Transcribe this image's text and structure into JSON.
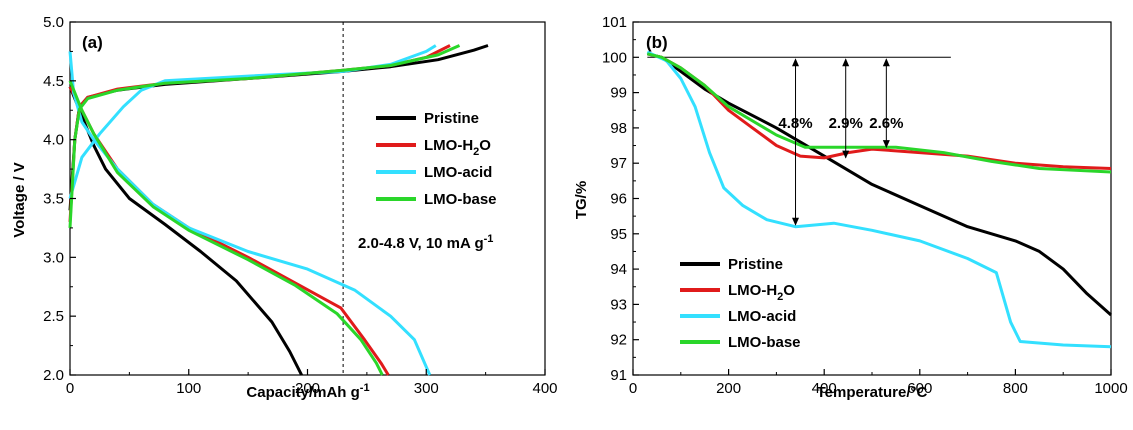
{
  "chart_data": [
    {
      "panel": "(a)",
      "type": "line",
      "xlabel": "Capacity/mAh g",
      "xlabel_sup": "-1",
      "ylabel": "Voltage / V",
      "xlim": [
        0,
        400
      ],
      "ylim": [
        2.0,
        5.0
      ],
      "xticks": [
        "0",
        "100",
        "200",
        "300",
        "400"
      ],
      "yticks": [
        "2.0",
        "2.5",
        "3.0",
        "3.5",
        "4.0",
        "4.5",
        "5.0"
      ],
      "annotation": "2.0-4.8 V, 10 mA g",
      "annotation_sup": "-1",
      "vline_x": 230,
      "legend_position": "right",
      "series": [
        {
          "name": "Pristine",
          "color": "#000000",
          "charge": [
            [
              0,
              3.4
            ],
            [
              4,
              4.0
            ],
            [
              8,
              4.28
            ],
            [
              15,
              4.36
            ],
            [
              40,
              4.42
            ],
            [
              80,
              4.47
            ],
            [
              150,
              4.52
            ],
            [
              230,
              4.58
            ],
            [
              270,
              4.62
            ],
            [
              310,
              4.68
            ],
            [
              340,
              4.76
            ],
            [
              352,
              4.8
            ]
          ],
          "discharge": [
            [
              0,
              4.45
            ],
            [
              10,
              4.2
            ],
            [
              20,
              3.95
            ],
            [
              30,
              3.75
            ],
            [
              50,
              3.5
            ],
            [
              80,
              3.28
            ],
            [
              110,
              3.05
            ],
            [
              140,
              2.8
            ],
            [
              170,
              2.45
            ],
            [
              185,
              2.2
            ],
            [
              195,
              2.0
            ]
          ]
        },
        {
          "name": "LMO-H2O",
          "color": "#e01b1b",
          "charge": [
            [
              0,
              3.3
            ],
            [
              4,
              4.0
            ],
            [
              8,
              4.28
            ],
            [
              15,
              4.36
            ],
            [
              40,
              4.43
            ],
            [
              80,
              4.48
            ],
            [
              150,
              4.52
            ],
            [
              230,
              4.59
            ],
            [
              270,
              4.63
            ],
            [
              300,
              4.7
            ],
            [
              320,
              4.8
            ]
          ],
          "discharge": [
            [
              0,
              4.45
            ],
            [
              10,
              4.25
            ],
            [
              20,
              4.05
            ],
            [
              40,
              3.75
            ],
            [
              70,
              3.45
            ],
            [
              100,
              3.25
            ],
            [
              150,
              3.0
            ],
            [
              190,
              2.78
            ],
            [
              228,
              2.57
            ],
            [
              248,
              2.3
            ],
            [
              262,
              2.1
            ],
            [
              268,
              2.0
            ]
          ]
        },
        {
          "name": "LMO-acid",
          "color": "#33e0ff",
          "charge": [
            [
              0,
              3.5
            ],
            [
              10,
              3.85
            ],
            [
              25,
              4.05
            ],
            [
              45,
              4.28
            ],
            [
              60,
              4.42
            ],
            [
              80,
              4.5
            ],
            [
              150,
              4.54
            ],
            [
              230,
              4.58
            ],
            [
              270,
              4.64
            ],
            [
              300,
              4.75
            ],
            [
              308,
              4.8
            ]
          ],
          "discharge": [
            [
              0,
              4.75
            ],
            [
              3,
              4.4
            ],
            [
              10,
              4.15
            ],
            [
              20,
              4.0
            ],
            [
              40,
              3.75
            ],
            [
              70,
              3.45
            ],
            [
              100,
              3.25
            ],
            [
              150,
              3.05
            ],
            [
              200,
              2.9
            ],
            [
              240,
              2.72
            ],
            [
              270,
              2.5
            ],
            [
              290,
              2.3
            ],
            [
              303,
              2.0
            ]
          ]
        },
        {
          "name": "LMO-base",
          "color": "#2ad62a",
          "charge": [
            [
              0,
              3.25
            ],
            [
              4,
              4.0
            ],
            [
              8,
              4.26
            ],
            [
              15,
              4.35
            ],
            [
              40,
              4.42
            ],
            [
              80,
              4.48
            ],
            [
              150,
              4.52
            ],
            [
              230,
              4.59
            ],
            [
              270,
              4.63
            ],
            [
              310,
              4.72
            ],
            [
              328,
              4.8
            ]
          ],
          "discharge": [
            [
              0,
              4.5
            ],
            [
              10,
              4.25
            ],
            [
              20,
              4.05
            ],
            [
              40,
              3.72
            ],
            [
              70,
              3.43
            ],
            [
              100,
              3.23
            ],
            [
              150,
              2.98
            ],
            [
              190,
              2.76
            ],
            [
              225,
              2.52
            ],
            [
              245,
              2.3
            ],
            [
              258,
              2.1
            ],
            [
              263,
              2.0
            ]
          ]
        }
      ]
    },
    {
      "panel": "(b)",
      "type": "line",
      "xlabel": "Temperature/",
      "xlabel_unit": "°C",
      "ylabel": "TG/%",
      "xlim": [
        0,
        1000
      ],
      "ylim": [
        91,
        101
      ],
      "xticks": [
        "0",
        "200",
        "400",
        "600",
        "800",
        "1000"
      ],
      "yticks": [
        "91",
        "92",
        "93",
        "94",
        "95",
        "96",
        "97",
        "98",
        "99",
        "100",
        "101"
      ],
      "hline_y": 100,
      "hline_x": [
        30,
        665
      ],
      "loss_annotations": [
        {
          "label": "4.8%",
          "x": 340,
          "y_top": 100.0,
          "y_bottom": 95.2
        },
        {
          "label": "2.9%",
          "x": 445,
          "y_top": 100.0,
          "y_bottom": 97.1
        },
        {
          "label": "2.6%",
          "x": 530,
          "y_top": 100.0,
          "y_bottom": 97.4
        }
      ],
      "legend_position": "bottom-left",
      "series": [
        {
          "name": "Pristine",
          "color": "#000000",
          "points": [
            [
              30,
              100.1
            ],
            [
              60,
              100.0
            ],
            [
              100,
              99.6
            ],
            [
              150,
              99.1
            ],
            [
              200,
              98.7
            ],
            [
              300,
              98.0
            ],
            [
              400,
              97.2
            ],
            [
              500,
              96.4
            ],
            [
              600,
              95.8
            ],
            [
              700,
              95.2
            ],
            [
              800,
              94.8
            ],
            [
              850,
              94.5
            ],
            [
              900,
              94.0
            ],
            [
              950,
              93.3
            ],
            [
              1000,
              92.7
            ]
          ]
        },
        {
          "name": "LMO-H2O",
          "color": "#e01b1b",
          "points": [
            [
              30,
              100.1
            ],
            [
              60,
              100.0
            ],
            [
              100,
              99.7
            ],
            [
              150,
              99.2
            ],
            [
              200,
              98.5
            ],
            [
              250,
              98.0
            ],
            [
              300,
              97.5
            ],
            [
              350,
              97.2
            ],
            [
              400,
              97.15
            ],
            [
              450,
              97.3
            ],
            [
              500,
              97.4
            ],
            [
              600,
              97.3
            ],
            [
              700,
              97.2
            ],
            [
              800,
              97.0
            ],
            [
              900,
              96.9
            ],
            [
              1000,
              96.85
            ]
          ]
        },
        {
          "name": "LMO-acid",
          "color": "#33e0ff",
          "points": [
            [
              30,
              100.15
            ],
            [
              70,
              99.9
            ],
            [
              100,
              99.4
            ],
            [
              130,
              98.6
            ],
            [
              160,
              97.3
            ],
            [
              190,
              96.3
            ],
            [
              230,
              95.8
            ],
            [
              280,
              95.4
            ],
            [
              340,
              95.2
            ],
            [
              420,
              95.3
            ],
            [
              500,
              95.1
            ],
            [
              600,
              94.8
            ],
            [
              700,
              94.3
            ],
            [
              760,
              93.9
            ],
            [
              790,
              92.5
            ],
            [
              810,
              91.95
            ],
            [
              900,
              91.85
            ],
            [
              1000,
              91.8
            ]
          ]
        },
        {
          "name": "LMO-base",
          "color": "#2ad62a",
          "points": [
            [
              30,
              100.1
            ],
            [
              60,
              100.0
            ],
            [
              100,
              99.7
            ],
            [
              150,
              99.2
            ],
            [
              200,
              98.6
            ],
            [
              300,
              97.8
            ],
            [
              360,
              97.45
            ],
            [
              450,
              97.45
            ],
            [
              550,
              97.45
            ],
            [
              650,
              97.3
            ],
            [
              750,
              97.05
            ],
            [
              850,
              96.85
            ],
            [
              1000,
              96.75
            ]
          ]
        }
      ]
    }
  ],
  "legend": {
    "a": [
      {
        "label": "Pristine",
        "sub": "",
        "suffix": ""
      },
      {
        "label": "LMO-H",
        "sub": "2",
        "suffix": "O"
      },
      {
        "label": "LMO-acid",
        "sub": "",
        "suffix": ""
      },
      {
        "label": "LMO-base",
        "sub": "",
        "suffix": ""
      }
    ],
    "b": [
      {
        "label": "Pristine",
        "sub": "",
        "suffix": ""
      },
      {
        "label": "LMO-H",
        "sub": "2",
        "suffix": "O"
      },
      {
        "label": "LMO-acid",
        "sub": "",
        "suffix": ""
      },
      {
        "label": "LMO-base",
        "sub": "",
        "suffix": ""
      }
    ]
  }
}
